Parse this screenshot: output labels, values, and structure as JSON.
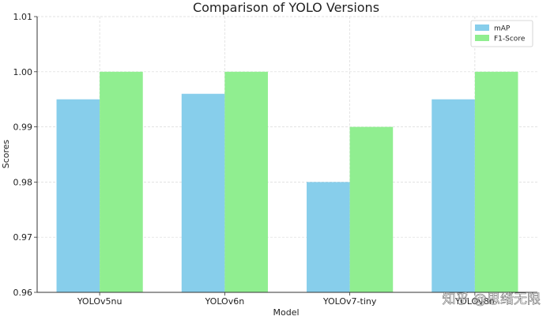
{
  "chart_data": {
    "type": "bar",
    "title": "Comparison of YOLO Versions",
    "xlabel": "Model",
    "ylabel": "Scores",
    "categories": [
      "YOLOv5nu",
      "YOLOv6n",
      "YOLOv7-tiny",
      "YOLOv8n"
    ],
    "series": [
      {
        "name": "mAP",
        "values": [
          0.995,
          0.996,
          0.98,
          0.995
        ],
        "color": "#87ceeb"
      },
      {
        "name": "F1-Score",
        "values": [
          1.0,
          1.0,
          0.99,
          1.0
        ],
        "color": "#90ee90"
      }
    ],
    "ylim": [
      0.96,
      1.01
    ],
    "yticks": [
      "0.96",
      "0.97",
      "0.98",
      "0.99",
      "1.00",
      "1.01"
    ],
    "grid": true,
    "legend_position": "top-right"
  },
  "watermark": "知乎 @思绪无限"
}
